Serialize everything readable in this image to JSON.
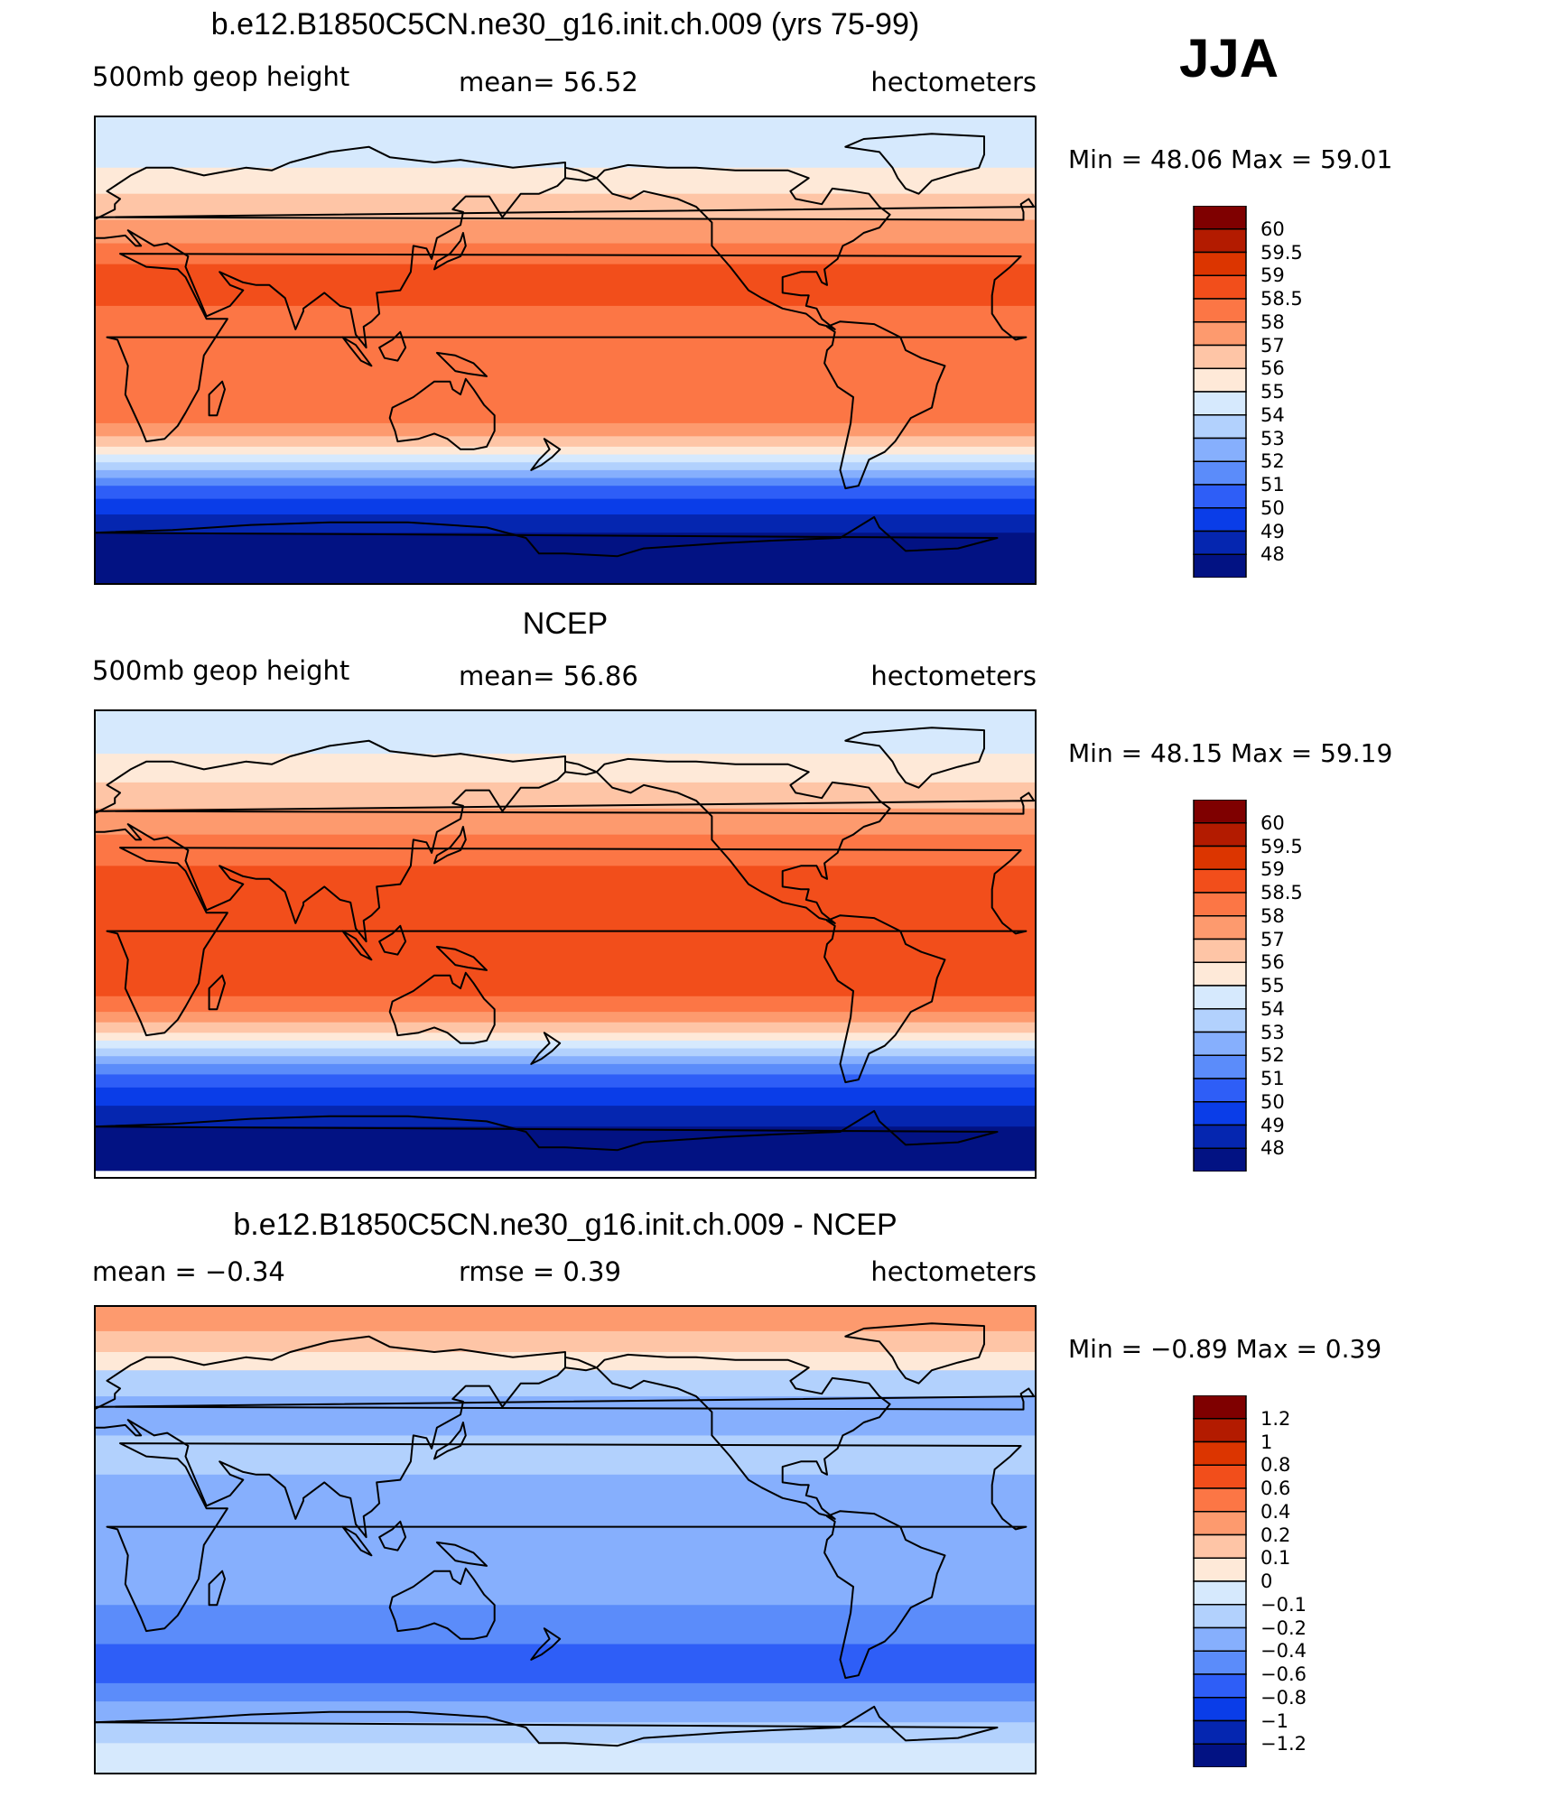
{
  "season": "JJA",
  "panels": [
    {
      "title": "b.e12.B1850C5CN.ne30_g16.init.ch.009 (yrs 75-99)",
      "left_label": "500mb geop height",
      "mid_label": "mean=   56.52",
      "units": "hectometers",
      "minmax": "Min =    48.06  Max =    59.01",
      "colorbar": {
        "labels": [
          "60",
          "59.5",
          "59",
          "58.5",
          "58",
          "57",
          "56",
          "55",
          "54",
          "53",
          "52",
          "51",
          "50",
          "49",
          "48"
        ],
        "colors": [
          "#7f0000",
          "#b31b00",
          "#dc3500",
          "#f24e1b",
          "#fc7645",
          "#fd9a6e",
          "#fec5a6",
          "#fee9d8",
          "#d6e9fd",
          "#b2d1fd",
          "#86affd",
          "#5b8cfa",
          "#2e5ef7",
          "#0a3de8",
          "#0526b0",
          "#021283"
        ]
      },
      "bands": [
        {
          "color": "#d6e9fd",
          "lat": 90
        },
        {
          "color": "#fee9d8",
          "lat": 70
        },
        {
          "color": "#fec5a6",
          "lat": 60
        },
        {
          "color": "#fd9a6e",
          "lat": 50
        },
        {
          "color": "#fc7645",
          "lat": 41
        },
        {
          "color": "#f24e1b",
          "lat": 33
        },
        {
          "color": "#fc7645",
          "lat": 17
        },
        {
          "color": "#fd9a6e",
          "lat": -28
        },
        {
          "color": "#fec5a6",
          "lat": -33
        },
        {
          "color": "#fee9d8",
          "lat": -37
        },
        {
          "color": "#d6e9fd",
          "lat": -40
        },
        {
          "color": "#b2d1fd",
          "lat": -43
        },
        {
          "color": "#86affd",
          "lat": -46
        },
        {
          "color": "#5b8cfa",
          "lat": -49
        },
        {
          "color": "#2e5ef7",
          "lat": -52
        },
        {
          "color": "#0a3de8",
          "lat": -57
        },
        {
          "color": "#0526b0",
          "lat": -63
        },
        {
          "color": "#021283",
          "lat": -70
        }
      ]
    },
    {
      "title": "NCEP",
      "left_label": "500mb geop height",
      "mid_label": "mean=   56.86",
      "units": "hectometers",
      "minmax": "Min =    48.15  Max =    59.19",
      "colorbar": {
        "labels": [
          "60",
          "59.5",
          "59",
          "58.5",
          "58",
          "57",
          "56",
          "55",
          "54",
          "53",
          "52",
          "51",
          "50",
          "49",
          "48"
        ],
        "colors": [
          "#7f0000",
          "#b31b00",
          "#dc3500",
          "#f24e1b",
          "#fc7645",
          "#fd9a6e",
          "#fec5a6",
          "#fee9d8",
          "#d6e9fd",
          "#b2d1fd",
          "#86affd",
          "#5b8cfa",
          "#2e5ef7",
          "#0a3de8",
          "#0526b0",
          "#021283"
        ]
      },
      "bands": [
        {
          "color": "#d6e9fd",
          "lat": 90
        },
        {
          "color": "#fee9d8",
          "lat": 73
        },
        {
          "color": "#fec5a6",
          "lat": 62
        },
        {
          "color": "#fd9a6e",
          "lat": 52
        },
        {
          "color": "#fc7645",
          "lat": 42
        },
        {
          "color": "#f24e1b",
          "lat": 30
        },
        {
          "color": "#fc7645",
          "lat": -20
        },
        {
          "color": "#fd9a6e",
          "lat": -26
        },
        {
          "color": "#fec5a6",
          "lat": -30
        },
        {
          "color": "#fee9d8",
          "lat": -34
        },
        {
          "color": "#d6e9fd",
          "lat": -37
        },
        {
          "color": "#b2d1fd",
          "lat": -40
        },
        {
          "color": "#86affd",
          "lat": -43
        },
        {
          "color": "#5b8cfa",
          "lat": -46
        },
        {
          "color": "#2e5ef7",
          "lat": -50
        },
        {
          "color": "#0a3de8",
          "lat": -55
        },
        {
          "color": "#0526b0",
          "lat": -62
        },
        {
          "color": "#021283",
          "lat": -70
        },
        {
          "color": "#ffffff",
          "lat": -87
        }
      ]
    },
    {
      "title": "b.e12.B1850C5CN.ne30_g16.init.ch.009 - NCEP",
      "left_label": "mean =   −0.34",
      "mid_label": "rmse =    0.39",
      "units": "hectometers",
      "minmax": "Min =   −0.89  Max =     0.39",
      "colorbar": {
        "labels": [
          "1.2",
          "1",
          "0.8",
          "0.6",
          "0.4",
          "0.2",
          "0.1",
          "0",
          "−0.1",
          "−0.2",
          "−0.4",
          "−0.6",
          "−0.8",
          "−1",
          "−1.2"
        ],
        "colors": [
          "#7f0000",
          "#b31b00",
          "#dc3500",
          "#f24e1b",
          "#fc7645",
          "#fd9a6e",
          "#fec5a6",
          "#fee9d8",
          "#d6e9fd",
          "#b2d1fd",
          "#86affd",
          "#5b8cfa",
          "#2e5ef7",
          "#0a3de8",
          "#0526b0",
          "#021283"
        ]
      },
      "bands": [
        {
          "color": "#fd9a6e",
          "lat": 90
        },
        {
          "color": "#fec5a6",
          "lat": 80
        },
        {
          "color": "#fee9d8",
          "lat": 72
        },
        {
          "color": "#b2d1fd",
          "lat": 65
        },
        {
          "color": "#86affd",
          "lat": 55
        },
        {
          "color": "#b2d1fd",
          "lat": 40
        },
        {
          "color": "#86affd",
          "lat": 25
        },
        {
          "color": "#5b8cfa",
          "lat": -25
        },
        {
          "color": "#2e5ef7",
          "lat": -40
        },
        {
          "color": "#5b8cfa",
          "lat": -55
        },
        {
          "color": "#86affd",
          "lat": -62
        },
        {
          "color": "#b2d1fd",
          "lat": -70
        },
        {
          "color": "#d6e9fd",
          "lat": -78
        }
      ]
    }
  ]
}
